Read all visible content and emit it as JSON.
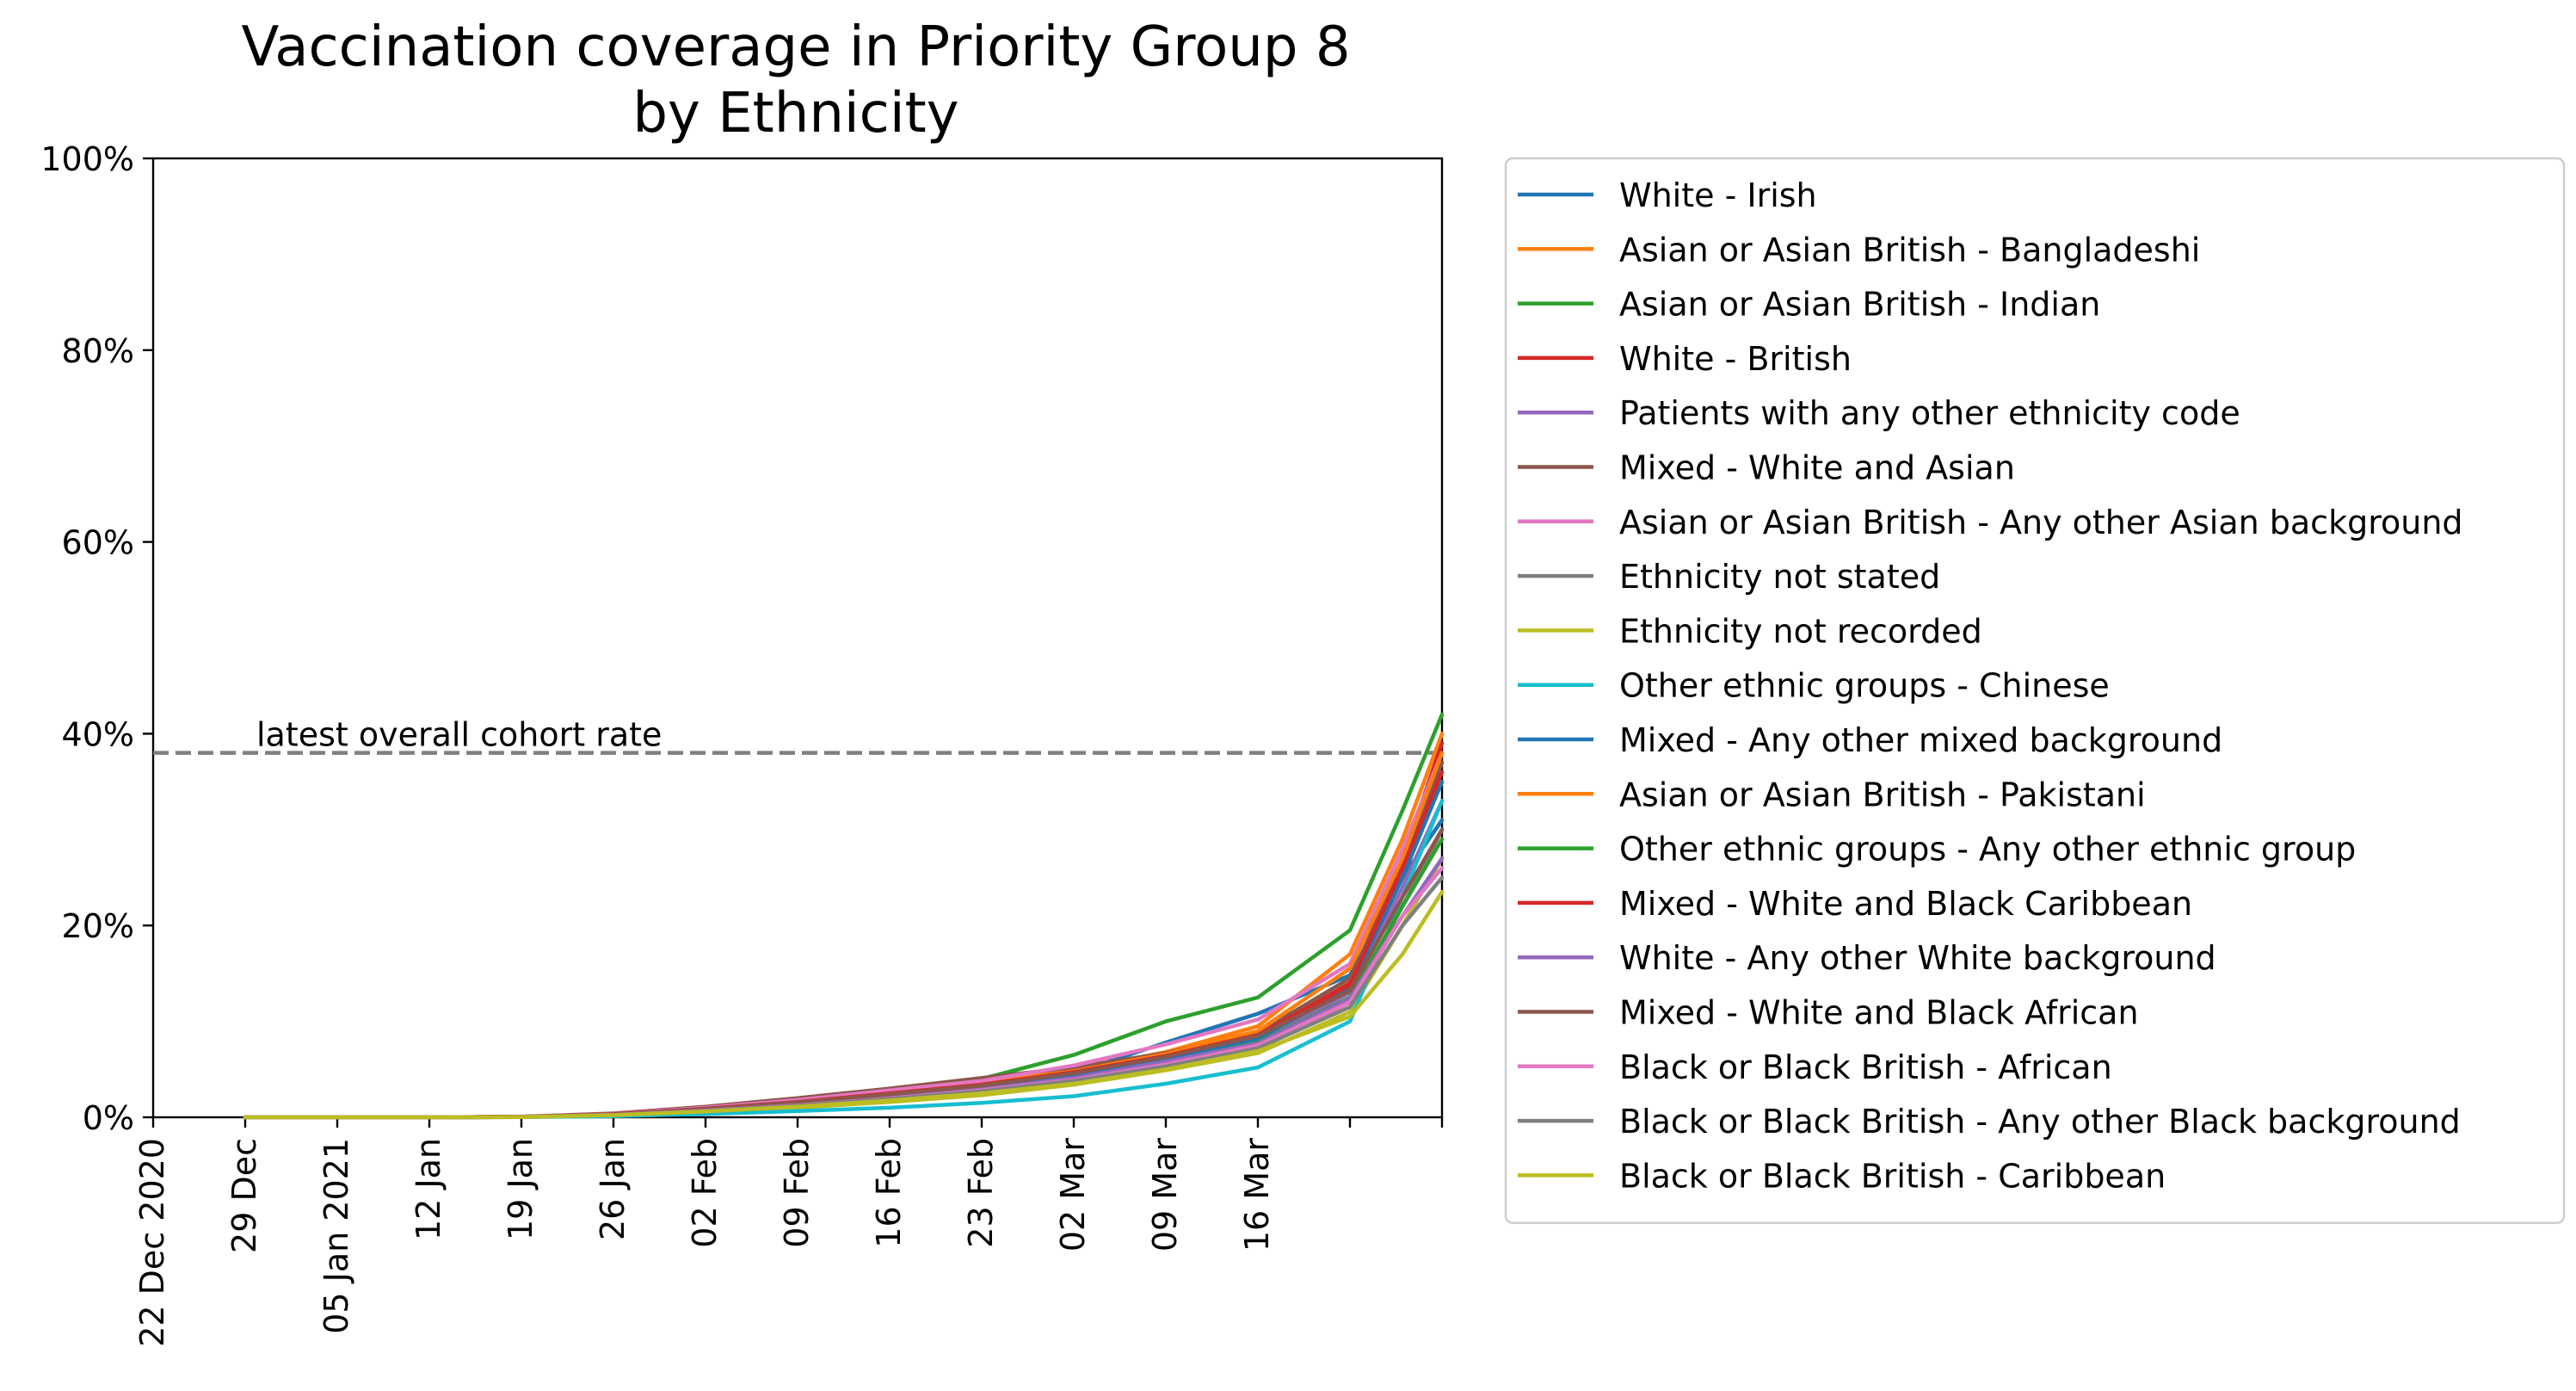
{
  "chart_data": {
    "type": "line",
    "title": "Vaccination coverage in Priority Group 8\nby Ethnicity",
    "xlabel": "",
    "ylabel": "",
    "x": [
      "2020-12-22",
      "2020-12-29",
      "2021-01-05",
      "2021-01-12",
      "2021-01-19",
      "2021-01-26",
      "2021-02-02",
      "2021-02-09",
      "2021-02-16",
      "2021-02-23",
      "2021-03-02",
      "2021-03-09",
      "2021-03-16",
      "2021-03-23",
      "2021-03-27",
      "2021-03-30"
    ],
    "x_ticks": [
      {
        "x": "2020-12-22",
        "label": "22 Dec 2020"
      },
      {
        "x": "2020-12-29",
        "label": "29 Dec"
      },
      {
        "x": "2021-01-05",
        "label": "05 Jan 2021"
      },
      {
        "x": "2021-01-12",
        "label": "12 Jan"
      },
      {
        "x": "2021-01-19",
        "label": "19 Jan"
      },
      {
        "x": "2021-01-26",
        "label": "26 Jan"
      },
      {
        "x": "2021-02-02",
        "label": "02 Feb"
      },
      {
        "x": "2021-02-09",
        "label": "09 Feb"
      },
      {
        "x": "2021-02-16",
        "label": "16 Feb"
      },
      {
        "x": "2021-02-23",
        "label": "23 Feb"
      },
      {
        "x": "2021-03-02",
        "label": "02 Mar"
      },
      {
        "x": "2021-03-09",
        "label": "09 Mar"
      },
      {
        "x": "2021-03-16",
        "label": "16 Mar"
      },
      {
        "x": "2021-03-23",
        "label": ""
      },
      {
        "x": "2021-03-30",
        "label": ""
      }
    ],
    "xlim": [
      "2020-12-22",
      "2021-03-30"
    ],
    "ylim": [
      0,
      100
    ],
    "y_ticks": [
      0,
      20,
      40,
      60,
      80,
      100
    ],
    "y_tick_labels": [
      "0%",
      "20%",
      "40%",
      "60%",
      "80%",
      "100%"
    ],
    "grid": false,
    "legend_position": "outside-right",
    "reference_line": {
      "y": 38,
      "label": "latest overall cohort rate",
      "color": "#7f7f7f"
    },
    "series": [
      {
        "name": "White - Irish",
        "color": "#1f77b4",
        "values": [
          null,
          0,
          0,
          0,
          0.05,
          0.3,
          0.8,
          1.5,
          2.3,
          3.2,
          4.6,
          7.8,
          10.8,
          14.8,
          25.0,
          31.0
        ]
      },
      {
        "name": "Asian or Asian British - Bangladeshi",
        "color": "#ff7f0e",
        "values": [
          null,
          0,
          0,
          0,
          0.05,
          0.3,
          0.9,
          1.6,
          2.5,
          3.5,
          4.9,
          6.8,
          9.5,
          17.0,
          29.0,
          40.0
        ]
      },
      {
        "name": "Asian or Asian British - Indian",
        "color": "#2ca02c",
        "values": [
          null,
          0,
          0,
          0,
          0.05,
          0.3,
          0.9,
          1.7,
          2.7,
          4.0,
          6.5,
          10.0,
          12.5,
          19.5,
          32.0,
          42.0
        ]
      },
      {
        "name": "White - British",
        "color": "#d62728",
        "values": [
          null,
          0,
          0,
          0,
          0.05,
          0.3,
          0.8,
          1.4,
          2.2,
          3.1,
          4.4,
          6.1,
          8.4,
          14.0,
          27.0,
          39.0
        ]
      },
      {
        "name": "Patients with any other ethnicity code",
        "color": "#9467bd",
        "values": [
          null,
          0,
          0,
          0,
          0.04,
          0.25,
          0.7,
          1.3,
          2.0,
          2.9,
          4.1,
          5.9,
          7.9,
          13.0,
          24.0,
          33.0
        ]
      },
      {
        "name": "Mixed - White and Asian",
        "color": "#8c564b",
        "values": [
          null,
          0,
          0,
          0,
          0.06,
          0.4,
          1.1,
          2.0,
          3.0,
          4.1,
          5.2,
          6.7,
          8.8,
          14.5,
          26.0,
          37.0
        ]
      },
      {
        "name": "Asian or Asian British - Any other Asian background",
        "color": "#e377c2",
        "values": [
          null,
          0,
          0,
          0,
          0.05,
          0.35,
          1.0,
          1.8,
          2.8,
          3.8,
          5.4,
          7.6,
          10.2,
          16.0,
          28.0,
          38.0
        ]
      },
      {
        "name": "Ethnicity not stated",
        "color": "#7f7f7f",
        "values": [
          null,
          0,
          0,
          0,
          0.03,
          0.2,
          0.6,
          1.1,
          1.8,
          2.6,
          3.8,
          5.4,
          7.3,
          12.0,
          22.0,
          30.0
        ]
      },
      {
        "name": "Ethnicity not recorded",
        "color": "#bcbd22",
        "values": [
          null,
          0,
          0,
          0,
          0.03,
          0.2,
          0.55,
          1.0,
          1.6,
          2.3,
          3.4,
          4.9,
          6.7,
          11.0,
          20.0,
          27.0
        ]
      },
      {
        "name": "Other ethnic groups - Chinese",
        "color": "#17becf",
        "values": [
          null,
          0,
          0,
          0,
          0.02,
          0.12,
          0.35,
          0.65,
          1.0,
          1.5,
          2.2,
          3.5,
          5.2,
          10.0,
          23.0,
          33.0
        ]
      },
      {
        "name": "Mixed - Any other mixed background",
        "color": "#1f77b4",
        "values": [
          null,
          0,
          0,
          0,
          0.04,
          0.28,
          0.75,
          1.35,
          2.1,
          3.0,
          4.3,
          6.0,
          8.2,
          13.5,
          25.0,
          35.0
        ]
      },
      {
        "name": "Asian or Asian British - Pakistani",
        "color": "#ff7f0e",
        "values": [
          null,
          0,
          0,
          0,
          0.05,
          0.3,
          0.85,
          1.5,
          2.4,
          3.4,
          4.8,
          6.6,
          9.0,
          15.5,
          27.0,
          38.0
        ]
      },
      {
        "name": "Other ethnic groups - Any other ethnic group",
        "color": "#2ca02c",
        "values": [
          null,
          0,
          0,
          0,
          0.04,
          0.25,
          0.7,
          1.3,
          2.0,
          2.9,
          4.0,
          5.7,
          7.8,
          12.5,
          22.0,
          29.0
        ]
      },
      {
        "name": "Mixed - White and Black Caribbean",
        "color": "#d62728",
        "values": [
          null,
          0,
          0,
          0,
          0.05,
          0.32,
          0.9,
          1.6,
          2.5,
          3.4,
          4.7,
          6.4,
          8.6,
          13.8,
          26.0,
          36.0
        ]
      },
      {
        "name": "White - Any other White background",
        "color": "#9467bd",
        "values": [
          null,
          0,
          0,
          0,
          0.04,
          0.26,
          0.72,
          1.3,
          2.05,
          2.9,
          4.1,
          5.8,
          7.7,
          12.4,
          21.0,
          27.0
        ]
      },
      {
        "name": "Mixed - White and Black African",
        "color": "#8c564b",
        "values": [
          null,
          0,
          0,
          0,
          0.05,
          0.3,
          0.85,
          1.55,
          2.4,
          3.3,
          4.6,
          6.3,
          8.5,
          13.2,
          23.0,
          30.0
        ]
      },
      {
        "name": "Black or Black British - African",
        "color": "#e377c2",
        "values": [
          null,
          0,
          0,
          0,
          0.04,
          0.25,
          0.7,
          1.25,
          1.95,
          2.8,
          3.9,
          5.5,
          7.5,
          12.0,
          21.0,
          26.0
        ]
      },
      {
        "name": "Black or Black British - Any other Black background",
        "color": "#7f7f7f",
        "values": [
          null,
          0,
          0,
          0,
          0.04,
          0.24,
          0.66,
          1.2,
          1.9,
          2.7,
          3.8,
          5.3,
          7.2,
          11.5,
          20.0,
          25.0
        ]
      },
      {
        "name": "Black or Black British - Caribbean",
        "color": "#bcbd22",
        "values": [
          null,
          0,
          0,
          0,
          0.03,
          0.22,
          0.6,
          1.1,
          1.75,
          2.5,
          3.5,
          5.0,
          6.9,
          10.5,
          17.0,
          23.5
        ]
      }
    ]
  }
}
